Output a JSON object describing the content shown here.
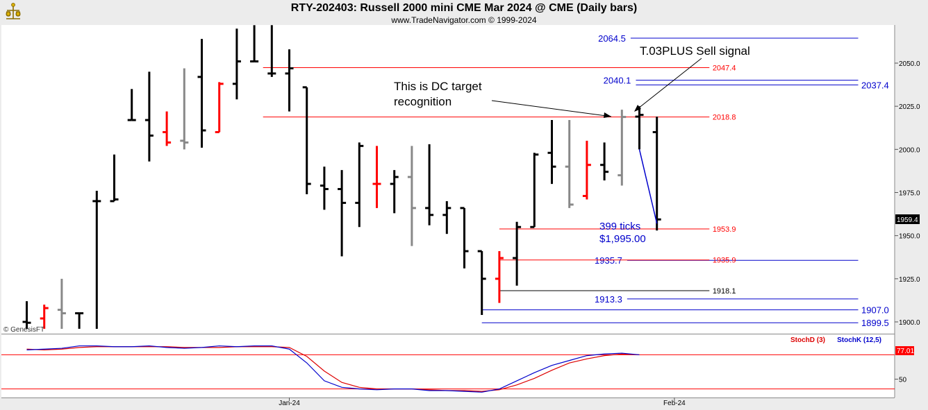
{
  "header": {
    "title": "RTY-202403:  Russell 2000 mini CME Mar 2024 @ CME  (Daily bars)",
    "subtitle": "www.TradeNavigator.com © 1999-2024",
    "watermark": "© GenesisFT"
  },
  "chart_data": [
    {
      "type": "ohlc",
      "ylim": [
        1896,
        2072
      ],
      "y_ticks": [
        1900.0,
        1925.0,
        1950.0,
        1975.0,
        2000.0,
        2025.0,
        2050.0
      ],
      "x_ticks": [
        {
          "label": "Jan-24",
          "bar": 15
        },
        {
          "label": "Feb-24",
          "bar": 37
        }
      ],
      "last_price": "1959.4",
      "colors": {
        "default": "#000000",
        "red": "#ff0000",
        "gray": "#888888",
        "green": "#00c800"
      },
      "bars": [
        {
          "o": 1900.0,
          "h": 1912.0,
          "l": 1896.0,
          "c": 1899.5,
          "col": "default"
        },
        {
          "o": 1902.0,
          "h": 1910.0,
          "l": 1896.0,
          "c": 1908.0,
          "col": "red"
        },
        {
          "o": 1907.0,
          "h": 1925.0,
          "l": 1896.0,
          "c": 1905.0,
          "col": "gray"
        },
        {
          "o": 1905.0,
          "h": 1905.0,
          "l": 1896.0,
          "c": 1905.0,
          "col": "default"
        },
        {
          "o": 1970.0,
          "h": 1976.0,
          "l": 1896.0,
          "c": 1970.0,
          "col": "default"
        },
        {
          "o": 1970.0,
          "h": 1997.0,
          "l": 1970.0,
          "c": 1971.0,
          "col": "default"
        },
        {
          "o": 2017.0,
          "h": 2035.0,
          "l": 2017.0,
          "c": 2017.0,
          "col": "default"
        },
        {
          "o": 2017.0,
          "h": 2045.0,
          "l": 1993.0,
          "c": 2008.0,
          "col": "default"
        },
        {
          "o": 2010.0,
          "h": 2022.0,
          "l": 2002.0,
          "c": 2004.0,
          "col": "red"
        },
        {
          "o": 2005.0,
          "h": 2047.0,
          "l": 2000.0,
          "c": 2004.0,
          "col": "gray"
        },
        {
          "o": 2042.0,
          "h": 2064.0,
          "l": 2001.0,
          "c": 2011.0,
          "col": "default"
        },
        {
          "o": 2010.0,
          "h": 2039.0,
          "l": 2010.0,
          "c": 2038.0,
          "col": "red"
        },
        {
          "o": 2038.0,
          "h": 2070.0,
          "l": 2029.0,
          "c": 2051.0,
          "col": "default"
        },
        {
          "o": 2051.0,
          "h": 2072.0,
          "l": 2051.0,
          "c": 2051.0,
          "col": "default"
        },
        {
          "o": 2044.0,
          "h": 2072.0,
          "l": 2042.0,
          "c": 2044.0,
          "col": "default"
        },
        {
          "o": 2044.0,
          "h": 2058.0,
          "l": 2022.0,
          "c": 2047.0,
          "col": "default"
        },
        {
          "o": 2036.0,
          "h": 2036.0,
          "l": 1974.0,
          "c": 1980.0,
          "col": "default"
        },
        {
          "o": 1979.0,
          "h": 1990.0,
          "l": 1965.0,
          "c": 1977.0,
          "col": "default"
        },
        {
          "o": 1977.0,
          "h": 1988.0,
          "l": 1938.0,
          "c": 1969.0,
          "col": "default"
        },
        {
          "o": 1969.0,
          "h": 2004.0,
          "l": 1955.0,
          "c": 2002.0,
          "col": "default"
        },
        {
          "o": 1980.0,
          "h": 2002.0,
          "l": 1966.0,
          "c": 1980.0,
          "col": "red"
        },
        {
          "o": 1980.0,
          "h": 1988.0,
          "l": 1963.0,
          "c": 1984.0,
          "col": "default"
        },
        {
          "o": 1984.0,
          "h": 2002.0,
          "l": 1944.0,
          "c": 1966.0,
          "col": "gray"
        },
        {
          "o": 1966.0,
          "h": 2003.0,
          "l": 1956.0,
          "c": 1962.0,
          "col": "default"
        },
        {
          "o": 1962.0,
          "h": 1970.0,
          "l": 1951.0,
          "c": 1966.0,
          "col": "default"
        },
        {
          "o": 1966.0,
          "h": 1966.0,
          "l": 1931.0,
          "c": 1941.0,
          "col": "default"
        },
        {
          "o": 1941.0,
          "h": 1941.0,
          "l": 1904.0,
          "c": 1925.0,
          "col": "default"
        },
        {
          "o": 1925.0,
          "h": 1941.0,
          "l": 1911.0,
          "c": 1937.0,
          "col": "red"
        },
        {
          "o": 1937.0,
          "h": 1958.0,
          "l": 1921.0,
          "c": 1955.0,
          "col": "default"
        },
        {
          "o": 1955.0,
          "h": 1998.0,
          "l": 1955.0,
          "c": 1997.0,
          "col": "default"
        },
        {
          "o": 1998.0,
          "h": 2017.0,
          "l": 1980.0,
          "c": 1990.0,
          "col": "default"
        },
        {
          "o": 1990.0,
          "h": 2017.0,
          "l": 1966.0,
          "c": 1968.0,
          "col": "gray"
        },
        {
          "o": 1973.0,
          "h": 2005.0,
          "l": 1971.0,
          "c": 1991.0,
          "col": "red"
        },
        {
          "o": 1991.0,
          "h": 2004.0,
          "l": 1982.0,
          "c": 1987.0,
          "col": "default"
        },
        {
          "o": 1985.0,
          "h": 2023.0,
          "l": 1979.0,
          "c": 2018.8,
          "col": "gray"
        },
        {
          "o": 2019.0,
          "h": 2025.0,
          "l": 2000.0,
          "c": 2020.0,
          "col": "default"
        },
        {
          "o": 2010.0,
          "h": 2019.0,
          "l": 1953.0,
          "c": 1959.4,
          "col": "default"
        }
      ],
      "levels": [
        {
          "value": 2064.5,
          "label": "2064.5",
          "color": "#0000cc",
          "b0": 34.5,
          "b1": 47.5,
          "label_bar": 34.3,
          "label_side": "left",
          "size": 13
        },
        {
          "value": 2047.4,
          "label": "2047.4",
          "color": "#ff0000",
          "b0": 13.5,
          "b1": 39.0,
          "label_bar": 39.1,
          "label_side": "right",
          "size": 11
        },
        {
          "value": 2040.1,
          "label": "2040.1",
          "color": "#0000cc",
          "b0": 34.8,
          "b1": 47.5,
          "label_bar": 34.6,
          "label_side": "left",
          "size": 13
        },
        {
          "value": 2037.4,
          "label": "2037.4",
          "color": "#0000cc",
          "b0": 34.8,
          "b1": 47.5,
          "label_bar": 47.6,
          "label_side": "right",
          "size": 13
        },
        {
          "value": 2018.8,
          "label": "2018.8",
          "color": "#ff0000",
          "b0": 13.5,
          "b1": 39.0,
          "label_bar": 39.1,
          "label_side": "right",
          "size": 11
        },
        {
          "value": 1953.9,
          "label": "1953.9",
          "color": "#ff0000",
          "b0": 27.0,
          "b1": 39.0,
          "label_bar": 39.1,
          "label_side": "right",
          "size": 11
        },
        {
          "value": 1935.7,
          "label": "1935.7",
          "color": "#0000cc",
          "b0": 34.3,
          "b1": 47.5,
          "label_bar": 34.1,
          "label_side": "left",
          "size": 13
        },
        {
          "value": 1935.9,
          "label": "1935.9",
          "color": "#ff0000",
          "b0": 27.0,
          "b1": 39.0,
          "label_bar": 39.1,
          "label_side": "right",
          "size": 11
        },
        {
          "value": 1918.1,
          "label": "1918.1",
          "color": "#000000",
          "b0": 27.0,
          "b1": 39.0,
          "label_bar": 39.1,
          "label_side": "right",
          "size": 11
        },
        {
          "value": 1913.3,
          "label": "1913.3",
          "color": "#0000cc",
          "b0": 34.3,
          "b1": 47.5,
          "label_bar": 34.1,
          "label_side": "left",
          "size": 13
        },
        {
          "value": 1907.0,
          "label": "1907.0",
          "color": "#0000cc",
          "b0": 26.0,
          "b1": 47.5,
          "label_bar": 47.6,
          "label_side": "right",
          "size": 13
        },
        {
          "value": 1899.5,
          "label": "1899.5",
          "color": "#0000cc",
          "b0": 26.0,
          "b1": 47.5,
          "label_bar": 47.6,
          "label_side": "right",
          "size": 13
        }
      ],
      "annotations": {
        "dc_text": [
          "This is DC target",
          "recognition"
        ],
        "sell_text": "T.03PLUS Sell signal",
        "ticks_text": "399 ticks",
        "dollars_text": "$1,995.00"
      },
      "measure_line": {
        "bar0": 35.0,
        "v0": 2000.0,
        "bar1": 36.0,
        "v1": 1957.0,
        "color": "#0000cc"
      }
    },
    {
      "type": "line",
      "ylim": [
        30,
        100
      ],
      "y_ticks": [
        50
      ],
      "marker_value": "77.01",
      "legend": [
        {
          "name": "StochD (3)",
          "color": "#dd0000"
        },
        {
          "name": "StochK (12,5)",
          "color": "#0000cc"
        }
      ],
      "series": [
        {
          "name": "StochD (3)",
          "color": "#dd0000",
          "values": [
            87,
            86,
            87,
            89,
            90,
            90,
            90,
            90,
            90,
            89,
            89,
            89,
            90,
            90,
            90,
            89,
            78,
            60,
            46,
            40,
            38,
            38,
            38,
            37,
            36,
            36,
            35,
            37,
            43,
            51,
            61,
            70,
            75,
            79,
            81,
            80
          ]
        },
        {
          "name": "StochK (12,5)",
          "color": "#0000cc",
          "values": [
            86,
            87,
            88,
            91,
            91,
            90,
            90,
            91,
            89,
            88,
            89,
            91,
            90,
            91,
            91,
            87,
            70,
            48,
            40,
            38,
            37,
            38,
            38,
            36,
            36,
            35,
            34,
            38,
            48,
            58,
            67,
            73,
            79,
            81,
            82,
            80
          ]
        }
      ]
    }
  ]
}
